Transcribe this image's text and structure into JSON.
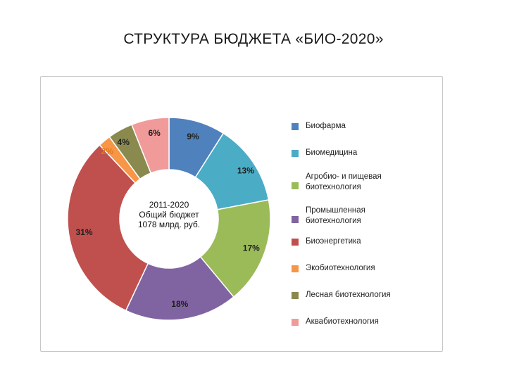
{
  "page": {
    "title": "СТРУКТУРА БЮДЖЕТА «БИО-2020»"
  },
  "chart_data": {
    "type": "pie",
    "title": "",
    "center_label": [
      "2011-2020",
      "Общий бюджет",
      "1078 млрд. руб."
    ],
    "legend_position": "right",
    "slices": [
      {
        "name": "Биофарма",
        "value": 9,
        "label": "9%",
        "color": "#4f81bd"
      },
      {
        "name": "Биомедицина",
        "value": 13,
        "label": "13%",
        "color": "#4bacc6"
      },
      {
        "name": "Агробио- и пищевая биотехнология",
        "value": 17,
        "label": "17%",
        "color": "#9bbb59"
      },
      {
        "name": "Промышленная биотехнология",
        "value": 18,
        "label": "18%",
        "color": "#8064a2"
      },
      {
        "name": "Биоэнергетика",
        "value": 31,
        "label": "31%",
        "color": "#c0504d"
      },
      {
        "name": "Экобиотехнология",
        "value": 2,
        "label": "2%",
        "color": "#f79646"
      },
      {
        "name": "Лесная биотехнология",
        "value": 4,
        "label": "4%",
        "color": "#8a8a4f"
      },
      {
        "name": "Аквабиотехнология",
        "value": 6,
        "label": "6%",
        "color": "#f19a9a"
      }
    ],
    "legend_lines": [
      [
        "Биофарма"
      ],
      [
        "Биомедицина"
      ],
      [
        "Агробио- и пищевая",
        "биотехнология"
      ],
      [
        "Промышленная",
        "биотехнология"
      ],
      [
        "Биоэнергетика"
      ],
      [
        "Экобиотехнология"
      ],
      [
        "Лесная биотехнология"
      ],
      [
        "Аквабиотехнология"
      ]
    ]
  }
}
